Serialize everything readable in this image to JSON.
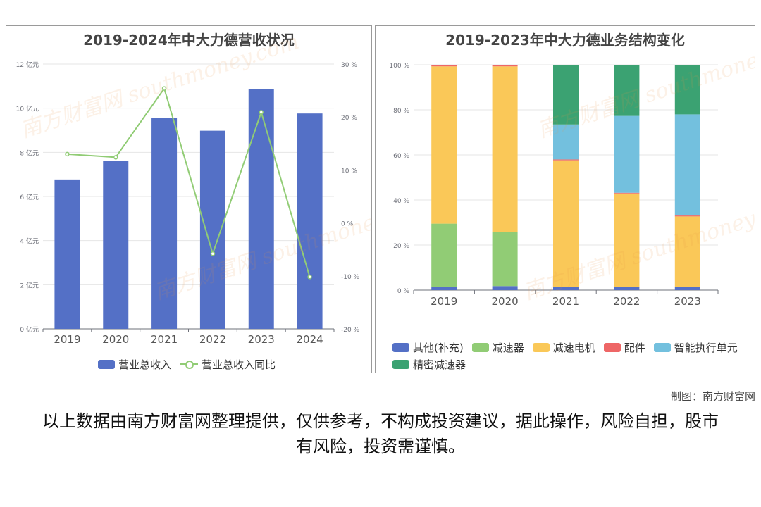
{
  "credit": "制图：南方财富网",
  "disclaimer": "以上数据由南方财富网整理提供，仅供参考，不构成投资建议，据此操作，风险自担，股市有风险，投资需谨慎。",
  "watermark_text": "南方财富网 southmoney.com",
  "chart_data": [
    {
      "type": "bar",
      "title": "2019-2024年中大力德营收状况",
      "categories": [
        "2019",
        "2020",
        "2021",
        "2022",
        "2023",
        "2024"
      ],
      "series": [
        {
          "name": "营业总收入",
          "type": "bar",
          "axis": "left",
          "color": "#5470c6",
          "values": [
            6.77,
            7.6,
            9.55,
            8.98,
            10.88,
            9.76
          ]
        },
        {
          "name": "营业总收入同比",
          "type": "line",
          "axis": "right",
          "color": "#91cc75",
          "values": [
            13.0,
            12.4,
            25.4,
            -5.8,
            20.9,
            -10.2
          ]
        }
      ],
      "ylim_left": [
        0,
        12
      ],
      "yticks_left": [
        "0 亿元",
        "2 亿元",
        "4 亿元",
        "6 亿元",
        "8 亿元",
        "10 亿元",
        "12 亿元"
      ],
      "ylim_right": [
        -20,
        30
      ],
      "yticks_right": [
        "-20 %",
        "-10 %",
        "0 %",
        "10 %",
        "20 %",
        "30 %"
      ],
      "grid": true,
      "legend": "bottom"
    },
    {
      "type": "bar",
      "stacked": true,
      "title": "2019-2023年中大力德业务结构变化",
      "categories": [
        "2019",
        "2020",
        "2021",
        "2022",
        "2023"
      ],
      "series": [
        {
          "name": "其他(补充)",
          "color": "#5470c6",
          "values": [
            1.5,
            1.8,
            1.4,
            1.3,
            1.3
          ]
        },
        {
          "name": "减速器",
          "color": "#91cc75",
          "values": [
            28.0,
            24.1,
            0,
            0,
            0
          ]
        },
        {
          "name": "减速电机",
          "color": "#fac858",
          "values": [
            69.8,
            73.4,
            56.2,
            41.6,
            31.4
          ]
        },
        {
          "name": "配件",
          "color": "#ee6666",
          "values": [
            0.7,
            0.7,
            0.4,
            0.3,
            0.4
          ]
        },
        {
          "name": "智能执行单元",
          "color": "#73c0de",
          "values": [
            0,
            0,
            15.5,
            34.1,
            44.9
          ]
        },
        {
          "name": "精密减速器",
          "color": "#3ba272",
          "values": [
            0,
            0,
            26.5,
            22.7,
            22.0
          ]
        }
      ],
      "ylim": [
        0,
        100
      ],
      "yticks": [
        "0 %",
        "20 %",
        "40 %",
        "60 %",
        "80 %",
        "100 %"
      ],
      "grid": true,
      "legend": "bottom"
    }
  ]
}
